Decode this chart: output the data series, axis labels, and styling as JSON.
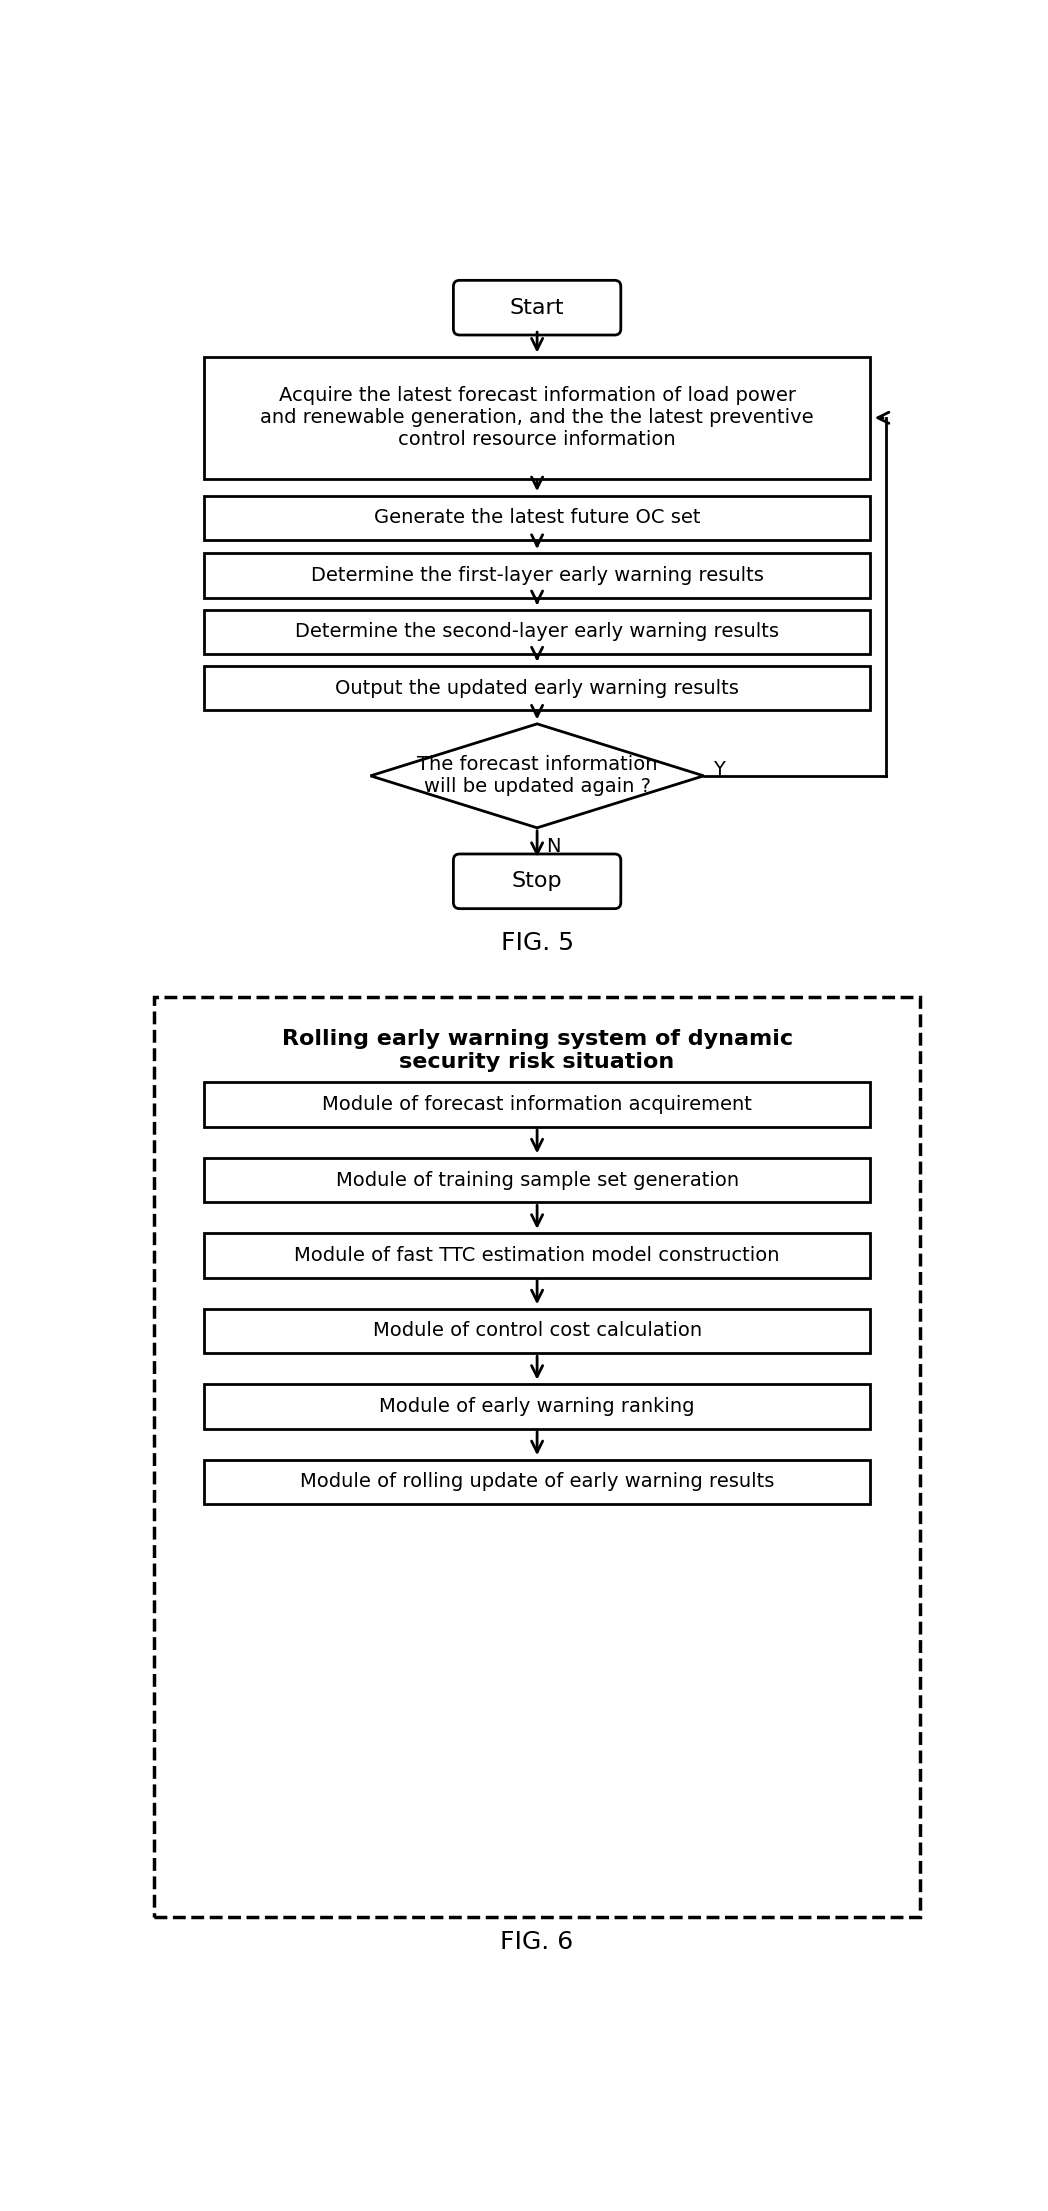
{
  "fig5_title": "FIG. 5",
  "fig6_title": "FIG. 6",
  "fig5_boxes": [
    "Acquire the latest forecast information of load power\nand renewable generation, and the the latest preventive\ncontrol resource information",
    "Generate the latest future OC set",
    "Determine the first-layer early warning results",
    "Determine the second-layer early warning results",
    "Output the updated early warning results"
  ],
  "fig5_diamond": "The forecast information\nwill be updated again ?",
  "fig5_start": "Start",
  "fig5_stop": "Stop",
  "fig6_title_text": "Rolling early warning system of dynamic\nsecurity risk situation",
  "fig6_modules": [
    "Module of forecast information acquirement",
    "Module of training sample set generation",
    "Module of fast TTC estimation model construction",
    "Module of control cost calculation",
    "Module of early warning ranking",
    "Module of rolling update of early warning results"
  ],
  "bg_color": "#ffffff",
  "box_edge_color": "#000000",
  "text_color": "#000000",
  "arrow_color": "#000000"
}
